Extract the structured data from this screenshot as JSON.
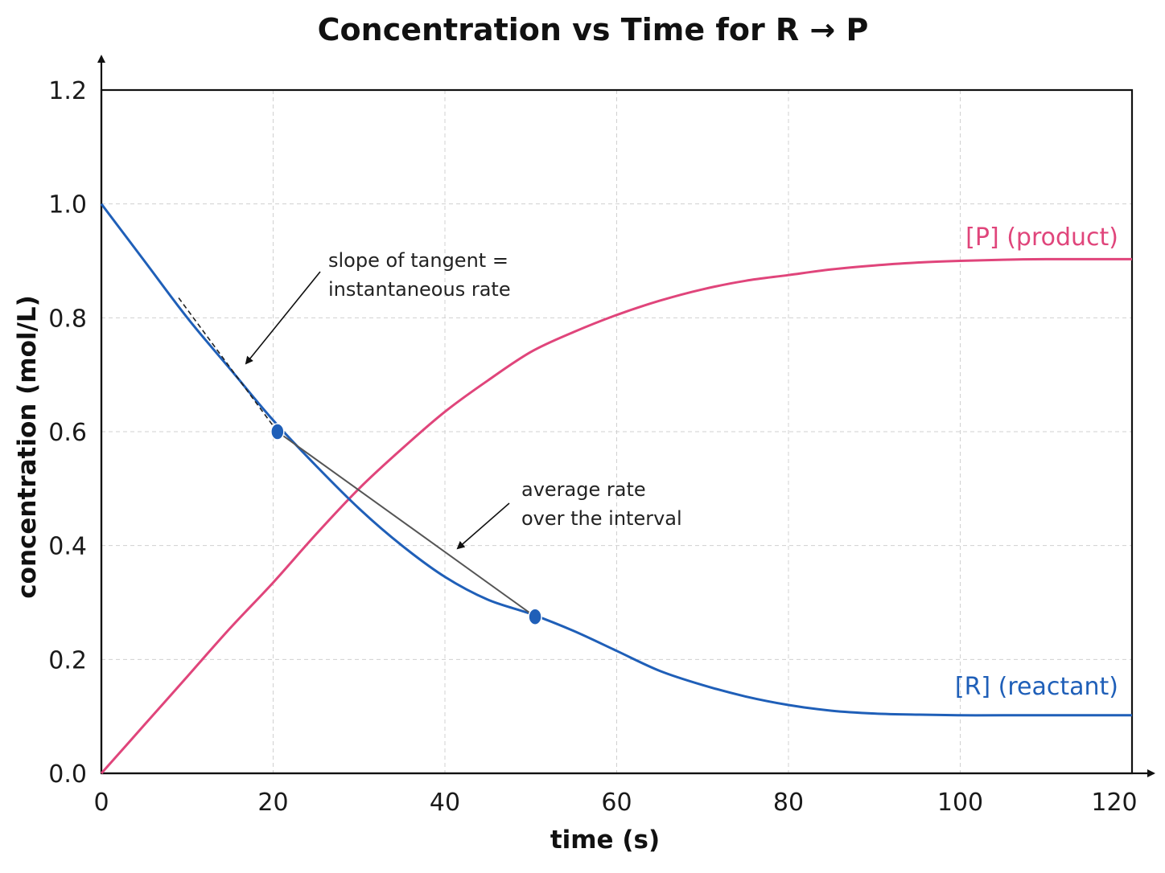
{
  "chart_data": {
    "type": "line",
    "title": "Concentration vs Time for R → P",
    "xlabel": "time (s)",
    "ylabel": "concentration (mol/L)",
    "xlim": [
      0,
      120
    ],
    "ylim": [
      0,
      1.2
    ],
    "x_ticks": [
      "0",
      "20",
      "40",
      "60",
      "80",
      "100",
      "120"
    ],
    "y_ticks": [
      "0.0",
      "0.2",
      "0.4",
      "0.6",
      "0.8",
      "1.0",
      "1.2"
    ],
    "grid": true,
    "colors": {
      "reactant": "#1f5fb8",
      "product": "#e0457b",
      "secant": "#555555",
      "tangent": "#222222"
    },
    "series": [
      {
        "name": "[R] (reactant)",
        "key": "reactant",
        "x": [
          0,
          5,
          10,
          15,
          20,
          25,
          30,
          35,
          40,
          45,
          50,
          55,
          60,
          65,
          70,
          75,
          80,
          85,
          90,
          95,
          100,
          105,
          110,
          120
        ],
        "y": [
          1.0,
          0.9,
          0.8,
          0.71,
          0.62,
          0.54,
          0.465,
          0.4,
          0.345,
          0.305,
          0.28,
          0.25,
          0.215,
          0.18,
          0.155,
          0.135,
          0.12,
          0.11,
          0.105,
          0.103,
          0.102,
          0.102,
          0.102,
          0.102
        ]
      },
      {
        "name": "[P] (product)",
        "key": "product",
        "x": [
          0,
          5,
          10,
          15,
          20,
          25,
          30,
          35,
          40,
          45,
          50,
          55,
          60,
          65,
          70,
          75,
          80,
          85,
          90,
          95,
          100,
          105,
          110,
          120
        ],
        "y": [
          0.0,
          0.085,
          0.17,
          0.255,
          0.335,
          0.42,
          0.5,
          0.57,
          0.635,
          0.69,
          0.74,
          0.775,
          0.805,
          0.83,
          0.85,
          0.865,
          0.875,
          0.885,
          0.892,
          0.897,
          0.9,
          0.902,
          0.903,
          0.903
        ]
      }
    ],
    "points": [
      {
        "x": 20.5,
        "y": 0.6
      },
      {
        "x": 50.5,
        "y": 0.275
      }
    ],
    "tangent": {
      "x1": 9,
      "y1": 0.835,
      "x2": 20.5,
      "y2": 0.6
    },
    "annotations": [
      {
        "lines": [
          "slope of tangent =",
          "instantaneous rate"
        ]
      },
      {
        "lines": [
          "average rate",
          "over the interval"
        ]
      }
    ]
  }
}
